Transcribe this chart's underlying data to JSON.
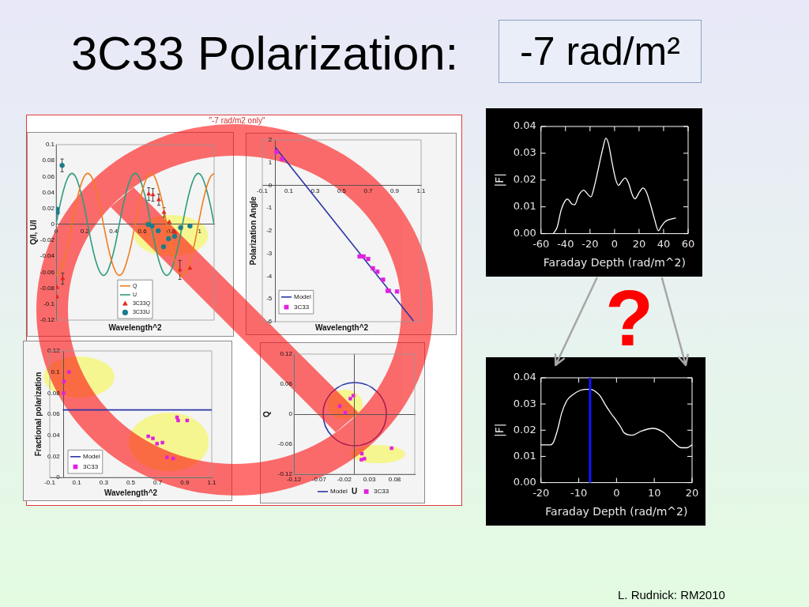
{
  "chart_data": [
    {
      "type": "other",
      "title": "3C33 Polarization:",
      "subtitle": "-7 rad/m²",
      "annotations": [
        "\"-7 rad/m2 only\"",
        "?",
        "L. Rudnick:  RM2010"
      ]
    },
    {
      "type": "scatter",
      "xlabel": "Wavelength^2",
      "ylabel": "Q/I, U/I",
      "xlim": [
        0,
        1.1
      ],
      "ylim": [
        -0.12,
        0.1
      ],
      "xticks": [
        0,
        0.2,
        0.4,
        0.6,
        0.8,
        1
      ],
      "yticks": [
        -0.12,
        -0.1,
        -0.08,
        -0.06,
        -0.04,
        -0.02,
        0,
        0.02,
        0.04,
        0.06,
        0.08,
        0.1
      ],
      "legend": "bottom",
      "series": [
        {
          "name": "Q",
          "type": "line",
          "color": "#f07d1e",
          "x": [
            0,
            0.028,
            0.055,
            0.083,
            0.11,
            0.138,
            0.165,
            0.193,
            0.22,
            0.248,
            0.275,
            0.303,
            0.33,
            0.358,
            0.385,
            0.413,
            0.44,
            0.468,
            0.495,
            0.523,
            0.55,
            0.578,
            0.605,
            0.633,
            0.66,
            0.688,
            0.715,
            0.743,
            0.77,
            0.798,
            0.825,
            0.853,
            0.88,
            0.908,
            0.935,
            0.963,
            0.99,
            1.018,
            1.045,
            1.073,
            1.1
          ],
          "values": [
            -0.064,
            -0.059,
            -0.045,
            -0.025,
            0,
            0.025,
            0.045,
            0.059,
            0.064,
            0.059,
            0.045,
            0.025,
            0,
            -0.025,
            -0.045,
            -0.059,
            -0.064,
            -0.059,
            -0.045,
            -0.025,
            0,
            0.025,
            0.045,
            0.059,
            0.064,
            0.059,
            0.045,
            0.025,
            0,
            -0.025,
            -0.045,
            -0.059,
            -0.064,
            -0.059,
            -0.045,
            -0.025,
            0,
            0.025,
            0.045,
            0.059,
            0.064
          ]
        },
        {
          "name": "U",
          "type": "line",
          "color": "#2f9a7e",
          "x": [
            0,
            0.028,
            0.055,
            0.083,
            0.11,
            0.138,
            0.165,
            0.193,
            0.22,
            0.248,
            0.275,
            0.303,
            0.33,
            0.358,
            0.385,
            0.413,
            0.44,
            0.468,
            0.495,
            0.523,
            0.55,
            0.578,
            0.605,
            0.633,
            0.66,
            0.688,
            0.715,
            0.743,
            0.77,
            0.798,
            0.825,
            0.853,
            0.88,
            0.908,
            0.935,
            0.963,
            0.99,
            1.018,
            1.045,
            1.073,
            1.1
          ],
          "values": [
            0,
            0.025,
            0.045,
            0.059,
            0.064,
            0.059,
            0.045,
            0.025,
            0,
            -0.025,
            -0.045,
            -0.059,
            -0.064,
            -0.059,
            -0.045,
            -0.025,
            0,
            0.025,
            0.045,
            0.059,
            0.064,
            0.059,
            0.045,
            0.025,
            0,
            -0.025,
            -0.045,
            -0.059,
            -0.064,
            -0.059,
            -0.045,
            -0.025,
            0,
            0.025,
            0.045,
            0.059,
            0.064,
            0.059,
            0.045,
            0.025,
            0
          ]
        },
        {
          "name": "3C33Q",
          "marker": "triangle",
          "color": "#e5261a",
          "x": [
            0.006,
            0.006,
            0.046,
            0.645,
            0.674,
            0.715,
            0.751,
            0.788,
            0.829,
            0.862,
            0.932
          ],
          "values": [
            -0.079,
            -0.091,
            -0.068,
            0.038,
            0.037,
            0.031,
            0.015,
            0.003,
            -0.01,
            -0.057,
            -0.055
          ],
          "errors": [
            null,
            null,
            0.007,
            0.008,
            0.008,
            0.007,
            0.006,
            null,
            null,
            0.012,
            null
          ]
        },
        {
          "name": "3C33U",
          "marker": "circle",
          "color": "#1d7c8a",
          "x": [
            0.006,
            0.008,
            0.042,
            0.641,
            0.668,
            0.711,
            0.748,
            0.783,
            0.825,
            0.867,
            0.932
          ],
          "values": [
            0.019,
            0.015,
            0.074,
            0,
            -0.002,
            -0.008,
            -0.028,
            -0.018,
            -0.015,
            -0.004,
            -0.002
          ],
          "errors": [
            null,
            null,
            0.008,
            null,
            null,
            null,
            null,
            null,
            null,
            null,
            null
          ]
        }
      ]
    },
    {
      "type": "scatter",
      "xlabel": "Wavelength^2",
      "ylabel": "Polarization Angle",
      "xlim": [
        -0.1,
        1.1
      ],
      "ylim": [
        -6,
        2
      ],
      "xticks": [
        -0.1,
        0.1,
        0.3,
        0.5,
        0.7,
        0.9,
        1.1
      ],
      "yticks": [
        -6,
        -5,
        -4,
        -3,
        -2,
        -1,
        0,
        1,
        2
      ],
      "legend": "bottom left",
      "series": [
        {
          "name": "Model",
          "type": "line",
          "color": "#2b35a8",
          "x": [
            0,
            1.04
          ],
          "values": [
            1.66,
            -5.95
          ]
        },
        {
          "name": "3C33",
          "marker": "square",
          "color": "#e020e0",
          "x": [
            0.007,
            0.048,
            0.635,
            0.665,
            0.7,
            0.736,
            0.77,
            0.813,
            0.847,
            0.857,
            0.918
          ],
          "values": [
            1.47,
            1.16,
            -3.13,
            -3.13,
            -3.24,
            -3.65,
            -3.8,
            -4.15,
            -4.64,
            -4.64,
            -4.67
          ]
        }
      ]
    },
    {
      "type": "scatter",
      "xlabel": "Wavelength^2",
      "ylabel": "Fractional polarization",
      "xlim": [
        -0.1,
        1.1
      ],
      "ylim": [
        0,
        0.12
      ],
      "xticks": [
        -0.1,
        0.1,
        0.3,
        0.5,
        0.7,
        0.9,
        1.1
      ],
      "yticks": [
        0,
        0.02,
        0.04,
        0.06,
        0.08,
        0.1,
        0.12
      ],
      "legend": "bottom left",
      "series": [
        {
          "name": "Model",
          "type": "line",
          "color": "#2b35a8",
          "x": [
            0,
            1.1
          ],
          "values": [
            0.064,
            0.064
          ]
        },
        {
          "name": "3C33",
          "marker": "square",
          "color": "#e020e0",
          "x": [
            0.042,
            0.005,
            0.003,
            0.843,
            0.851,
            0.918,
            0.63,
            0.664,
            0.695,
            0.735,
            0.768,
            0.814
          ],
          "values": [
            0.1,
            0.091,
            0.08,
            0.057,
            0.054,
            0.054,
            0.039,
            0.037,
            0.032,
            0.033,
            0.019,
            0.018
          ]
        }
      ]
    },
    {
      "type": "scatter",
      "xlabel": "U",
      "ylabel": "Q",
      "xlim": [
        -0.12,
        0.12
      ],
      "ylim": [
        -0.12,
        0.12
      ],
      "xticks": [
        -0.12,
        -0.07,
        -0.02,
        0.03,
        0.08
      ],
      "yticks": [
        -0.12,
        -0.06,
        0,
        0.06,
        0.12
      ],
      "legend": "bottom",
      "annotations": [
        "Model"
      ],
      "series": [
        {
          "name": "3C33",
          "marker": "square",
          "color": "#e020e0",
          "x": [
            -0.002,
            -0.008,
            -0.029,
            -0.018,
            0.074,
            0.015,
            0.014,
            0.02
          ],
          "values": [
            0.037,
            0.031,
            0.016,
            0.003,
            -0.068,
            -0.079,
            -0.091,
            -0.089
          ]
        }
      ]
    },
    {
      "type": "line",
      "xlabel": "Faraday Depth (rad/m^2)",
      "ylabel": "|F|",
      "xlim": [
        -60,
        60
      ],
      "ylim": [
        0,
        0.04
      ],
      "xticks": [
        -60,
        -40,
        -20,
        0,
        20,
        40,
        60
      ],
      "yticks": [
        {
          "value": 0,
          "label": "0.00"
        },
        0.01,
        0.02,
        0.03,
        0.04
      ],
      "series": [
        {
          "color": "#ffffff",
          "x": [
            -50,
            -46.8,
            -43.5,
            -40.2,
            -38.4,
            -34.7,
            -32.5,
            -29.2,
            -25.2,
            -21.5,
            -19.3,
            -16,
            -12.6,
            -9.4,
            -7.1,
            -5,
            -2.3,
            0.6,
            3.2,
            6.1,
            8.7,
            11.6,
            14.2,
            16.6,
            20.4,
            23.2,
            25.9,
            29.2,
            32.5,
            35.8,
            38,
            41.3,
            45.7,
            49.7
          ],
          "values": [
            0,
            0.0024,
            0.0089,
            0.0123,
            0.0129,
            0.011,
            0.0108,
            0.0143,
            0.0162,
            0.0145,
            0.0137,
            0.0186,
            0.0256,
            0.0321,
            0.0356,
            0.0337,
            0.0272,
            0.0208,
            0.018,
            0.0197,
            0.0208,
            0.0186,
            0.0148,
            0.013,
            0.0156,
            0.017,
            0.0156,
            0.011,
            0.0056,
            0.0011,
            0.0026,
            0.0045,
            0.0054,
            0.0058
          ]
        }
      ]
    },
    {
      "type": "line",
      "xlabel": "Faraday Depth (rad/m^2)",
      "ylabel": "|F|",
      "xlim": [
        -20,
        20
      ],
      "ylim": [
        0,
        0.04
      ],
      "xticks": [
        -20,
        -10,
        0,
        10,
        20
      ],
      "yticks": [
        {
          "value": 0,
          "label": "0.00"
        },
        0.01,
        0.02,
        0.03,
        0.04
      ],
      "ref_lines": [
        {
          "axis": "x",
          "value": -7,
          "color": "#1414ff"
        }
      ],
      "series": [
        {
          "color": "#ffffff",
          "x": [
            -20,
            -17.4,
            -16.7,
            -15.6,
            -14.5,
            -13.1,
            -11.6,
            -9.8,
            -8.3,
            -6.9,
            -5.4,
            -4.3,
            -3,
            -1.5,
            0,
            1.2,
            1.9,
            4.1,
            6.6,
            9.6,
            12.5,
            14.7,
            17.2,
            18.7,
            20
          ],
          "values": [
            0.0144,
            0.0144,
            0.0154,
            0.0202,
            0.0266,
            0.0314,
            0.0335,
            0.0351,
            0.0356,
            0.0356,
            0.0346,
            0.033,
            0.0298,
            0.0265,
            0.0236,
            0.021,
            0.0192,
            0.0181,
            0.0197,
            0.0207,
            0.0191,
            0.016,
            0.0133,
            0.0133,
            0.0144
          ]
        }
      ]
    }
  ]
}
